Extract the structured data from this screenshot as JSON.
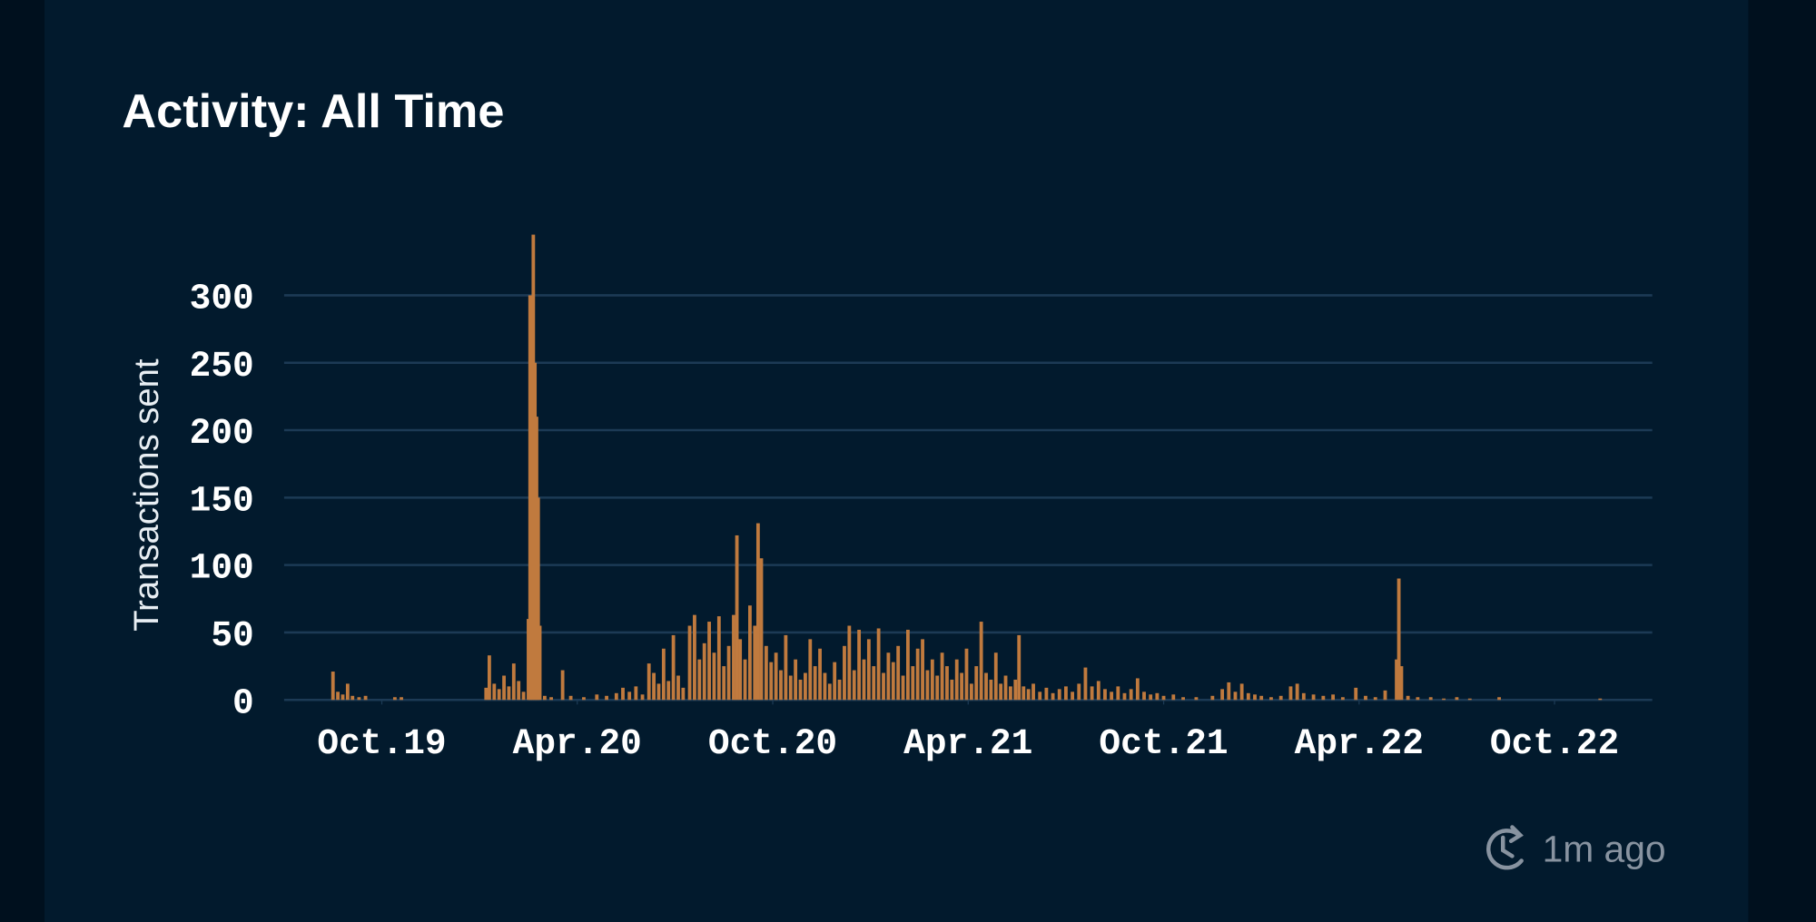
{
  "chart_data": {
    "type": "bar",
    "title": "Activity: All Time",
    "ylabel": "Transactions sent",
    "annotation": "1m ago",
    "color": "#c07a3e",
    "grid": true,
    "xlim": [
      -3,
      39
    ],
    "xticks": [
      {
        "value": 0,
        "label": "Oct.19"
      },
      {
        "value": 6,
        "label": "Apr.20"
      },
      {
        "value": 12,
        "label": "Oct.20"
      },
      {
        "value": 18,
        "label": "Apr.21"
      },
      {
        "value": 24,
        "label": "Oct.21"
      },
      {
        "value": 30,
        "label": "Apr.22"
      },
      {
        "value": 36,
        "label": "Oct.22"
      }
    ],
    "ylim": [
      0,
      350
    ],
    "yticks": [
      0,
      50,
      100,
      150,
      200,
      250,
      300
    ],
    "x": [
      -1.5,
      -1.35,
      -1.2,
      -1.05,
      -0.9,
      -0.7,
      -0.5,
      0.4,
      0.6,
      3.2,
      3.3,
      3.45,
      3.6,
      3.75,
      3.9,
      4.05,
      4.2,
      4.35,
      4.5,
      4.55,
      4.6,
      4.65,
      4.7,
      4.75,
      4.8,
      4.85,
      5.0,
      5.2,
      5.55,
      5.8,
      6.2,
      6.6,
      6.9,
      7.2,
      7.4,
      7.6,
      7.8,
      8.0,
      8.2,
      8.35,
      8.5,
      8.65,
      8.8,
      8.95,
      9.1,
      9.25,
      9.45,
      9.6,
      9.75,
      9.9,
      10.05,
      10.2,
      10.35,
      10.5,
      10.65,
      10.8,
      10.9,
      11.0,
      11.15,
      11.3,
      11.45,
      11.55,
      11.65,
      11.8,
      11.95,
      12.1,
      12.25,
      12.4,
      12.55,
      12.7,
      12.85,
      13.0,
      13.15,
      13.3,
      13.45,
      13.6,
      13.75,
      13.9,
      14.05,
      14.2,
      14.35,
      14.5,
      14.65,
      14.8,
      14.95,
      15.1,
      15.25,
      15.4,
      15.55,
      15.7,
      15.85,
      16.0,
      16.15,
      16.3,
      16.45,
      16.6,
      16.75,
      16.9,
      17.05,
      17.2,
      17.35,
      17.5,
      17.65,
      17.8,
      17.95,
      18.1,
      18.25,
      18.4,
      18.55,
      18.7,
      18.85,
      19.0,
      19.15,
      19.3,
      19.45,
      19.56,
      19.7,
      19.85,
      20.0,
      20.2,
      20.4,
      20.6,
      20.8,
      21.0,
      21.2,
      21.4,
      21.6,
      21.8,
      22.0,
      22.2,
      22.4,
      22.6,
      22.8,
      23.0,
      23.2,
      23.4,
      23.6,
      23.8,
      24.0,
      24.3,
      24.6,
      25.0,
      25.5,
      25.8,
      26.0,
      26.2,
      26.4,
      26.6,
      26.8,
      27.0,
      27.3,
      27.6,
      27.9,
      28.1,
      28.3,
      28.6,
      28.9,
      29.2,
      29.5,
      29.9,
      30.2,
      30.5,
      30.8,
      31.15,
      31.22,
      31.3,
      31.5,
      31.8,
      32.2,
      32.6,
      33.0,
      33.4,
      34.3,
      37.4
    ],
    "values": [
      21,
      6,
      4,
      12,
      3,
      2,
      3,
      2,
      2,
      9,
      33,
      12,
      8,
      18,
      10,
      27,
      14,
      6,
      60,
      300,
      190,
      345,
      250,
      210,
      150,
      55,
      3,
      2,
      22,
      3,
      2,
      4,
      3,
      5,
      9,
      6,
      10,
      4,
      27,
      20,
      12,
      38,
      14,
      48,
      18,
      9,
      55,
      63,
      30,
      42,
      58,
      35,
      62,
      25,
      40,
      63,
      122,
      45,
      30,
      70,
      55,
      131,
      105,
      40,
      28,
      35,
      22,
      48,
      18,
      30,
      15,
      20,
      45,
      25,
      38,
      20,
      12,
      28,
      15,
      40,
      55,
      22,
      52,
      30,
      45,
      25,
      53,
      20,
      35,
      28,
      40,
      18,
      52,
      25,
      38,
      45,
      22,
      30,
      18,
      35,
      25,
      15,
      30,
      20,
      38,
      12,
      25,
      58,
      20,
      15,
      35,
      12,
      18,
      10,
      15,
      48,
      10,
      8,
      12,
      6,
      9,
      5,
      8,
      10,
      6,
      12,
      24,
      10,
      14,
      8,
      6,
      10,
      5,
      8,
      16,
      6,
      4,
      5,
      3,
      4,
      2,
      2,
      3,
      8,
      13,
      6,
      12,
      5,
      4,
      3,
      2,
      3,
      10,
      12,
      5,
      4,
      3,
      4,
      2,
      9,
      3,
      2,
      7,
      30,
      90,
      25,
      3,
      2,
      2,
      1,
      2,
      1,
      2,
      1
    ]
  }
}
